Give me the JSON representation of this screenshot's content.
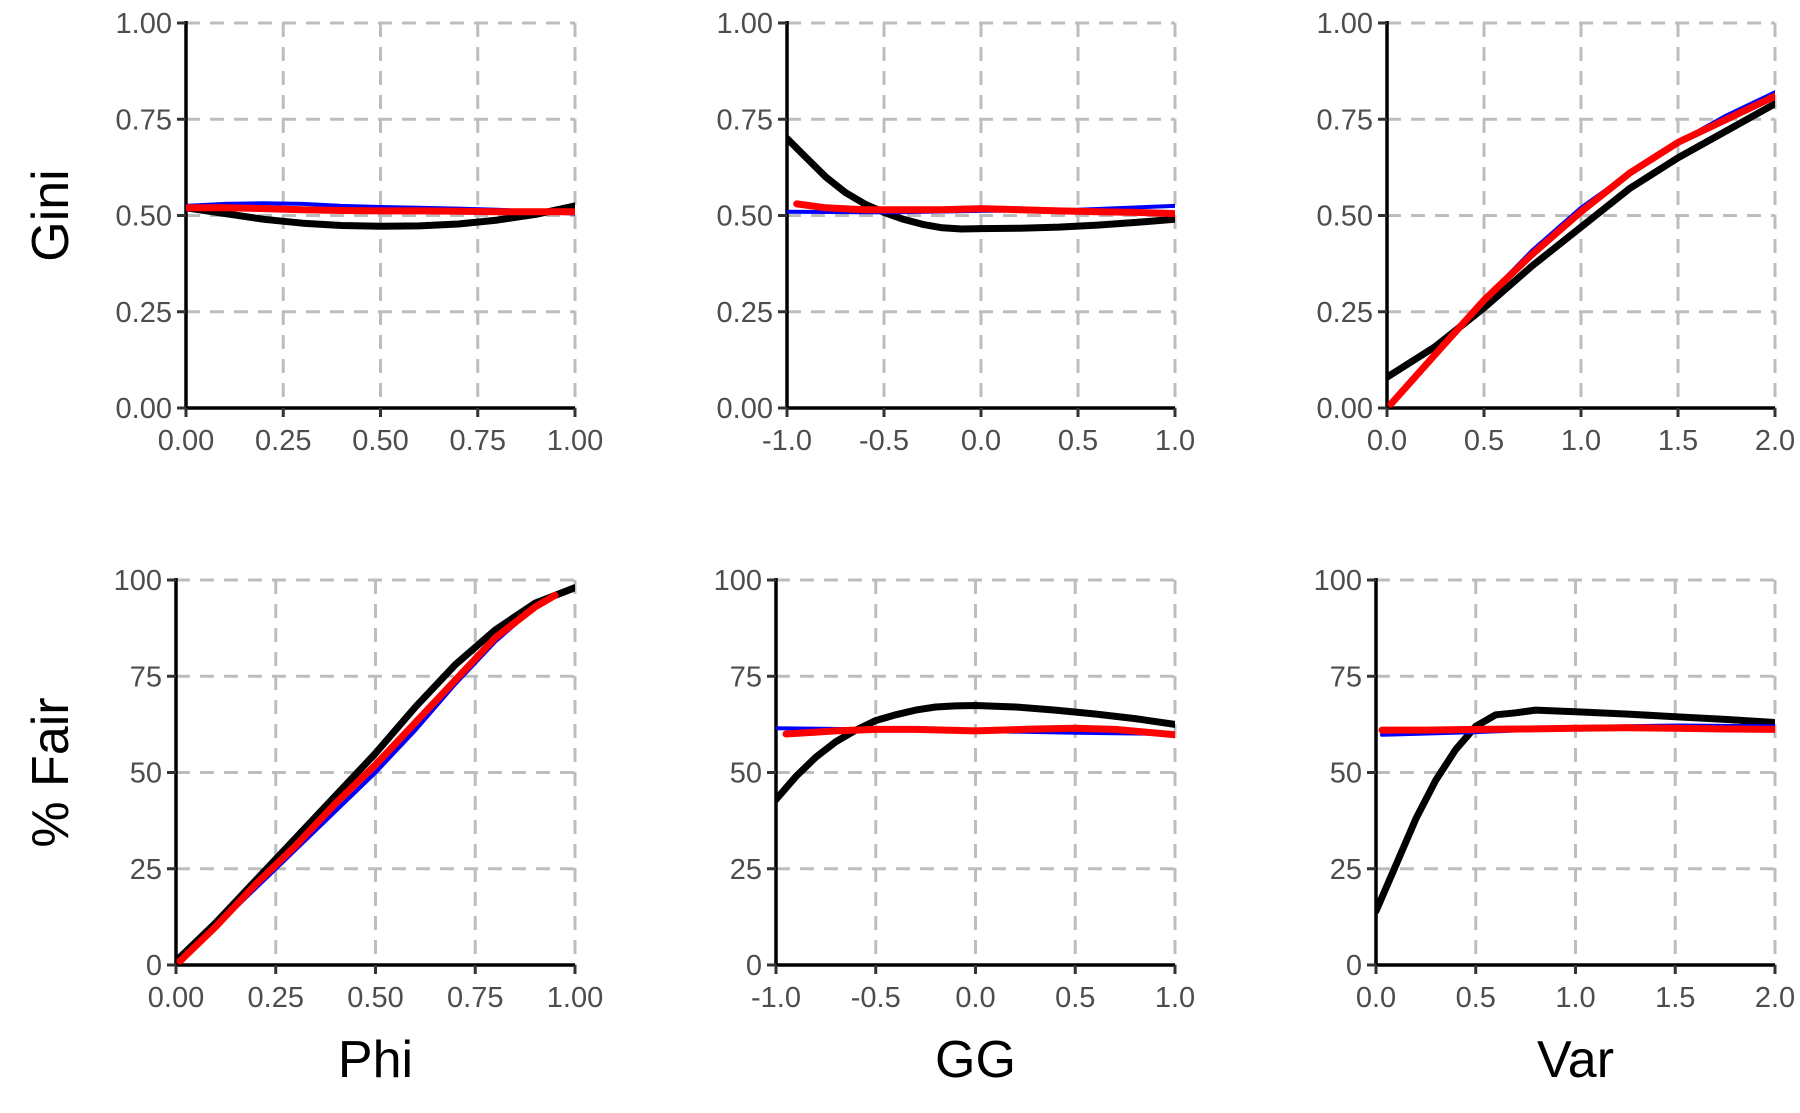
{
  "chart_data": [
    {
      "type": "line",
      "xlabel": "",
      "ylabel": "Gini",
      "xlim": [
        0,
        1
      ],
      "ylim": [
        0,
        1
      ],
      "xticks": [
        "0.00",
        "0.25",
        "0.50",
        "0.75",
        "1.00"
      ],
      "yticks": [
        "0.00",
        "0.25",
        "0.50",
        "0.75",
        "1.00"
      ],
      "xtick_values": [
        0,
        0.25,
        0.5,
        0.75,
        1
      ],
      "ytick_values": [
        0,
        0.25,
        0.5,
        0.75,
        1
      ],
      "grid": true,
      "series": [
        {
          "color": "#000000",
          "width": 7,
          "x": [
            0,
            0.1,
            0.2,
            0.3,
            0.4,
            0.5,
            0.6,
            0.7,
            0.8,
            0.9,
            1.0
          ],
          "y": [
            0.52,
            0.505,
            0.49,
            0.48,
            0.474,
            0.472,
            0.473,
            0.478,
            0.488,
            0.503,
            0.525
          ]
        },
        {
          "color": "#0000ff",
          "width": 4,
          "x": [
            0,
            0.1,
            0.2,
            0.3,
            0.4,
            0.5,
            0.6,
            0.7,
            0.8,
            0.9,
            1.0
          ],
          "y": [
            0.525,
            0.53,
            0.532,
            0.53,
            0.525,
            0.522,
            0.52,
            0.518,
            0.515,
            0.51,
            0.505
          ]
        },
        {
          "color": "#ff0000",
          "width": 7,
          "x": [
            0,
            0.1,
            0.2,
            0.3,
            0.4,
            0.5,
            0.6,
            0.7,
            0.8,
            0.9,
            1.0
          ],
          "y": [
            0.52,
            0.52,
            0.518,
            0.515,
            0.513,
            0.512,
            0.512,
            0.511,
            0.51,
            0.51,
            0.51
          ]
        }
      ]
    },
    {
      "type": "line",
      "xlabel": "",
      "ylabel": "",
      "xlim": [
        -1,
        1
      ],
      "ylim": [
        0,
        1
      ],
      "xticks": [
        "-1.0",
        "-0.5",
        "0.0",
        "0.5",
        "1.0"
      ],
      "yticks": [
        "0.00",
        "0.25",
        "0.50",
        "0.75",
        "1.00"
      ],
      "xtick_values": [
        -1,
        -0.5,
        0,
        0.5,
        1
      ],
      "ytick_values": [
        0,
        0.25,
        0.5,
        0.75,
        1
      ],
      "grid": true,
      "series": [
        {
          "color": "#000000",
          "width": 7,
          "x": [
            -1,
            -0.9,
            -0.8,
            -0.7,
            -0.6,
            -0.5,
            -0.4,
            -0.3,
            -0.2,
            -0.1,
            0,
            0.2,
            0.4,
            0.6,
            0.8,
            1.0
          ],
          "y": [
            0.7,
            0.65,
            0.6,
            0.56,
            0.53,
            0.508,
            0.49,
            0.477,
            0.468,
            0.465,
            0.466,
            0.467,
            0.47,
            0.475,
            0.482,
            0.49
          ]
        },
        {
          "color": "#0000ff",
          "width": 4,
          "x": [
            -1,
            -0.5,
            0,
            0.5,
            1.0
          ],
          "y": [
            0.51,
            0.508,
            0.512,
            0.515,
            0.525
          ]
        },
        {
          "color": "#ff0000",
          "width": 7,
          "x": [
            -0.95,
            -0.8,
            -0.6,
            -0.4,
            -0.2,
            0,
            0.2,
            0.4,
            0.6,
            0.8,
            1.0
          ],
          "y": [
            0.53,
            0.52,
            0.515,
            0.515,
            0.515,
            0.518,
            0.515,
            0.512,
            0.51,
            0.508,
            0.505
          ]
        }
      ]
    },
    {
      "type": "line",
      "xlabel": "",
      "ylabel": "",
      "xlim": [
        0,
        2
      ],
      "ylim": [
        0,
        1
      ],
      "xticks": [
        "0.0",
        "0.5",
        "1.0",
        "1.5",
        "2.0"
      ],
      "yticks": [
        "0.00",
        "0.25",
        "0.50",
        "0.75",
        "1.00"
      ],
      "xtick_values": [
        0,
        0.5,
        1,
        1.5,
        2
      ],
      "ytick_values": [
        0,
        0.25,
        0.5,
        0.75,
        1
      ],
      "grid": true,
      "series": [
        {
          "color": "#000000",
          "width": 7,
          "x": [
            0,
            0.25,
            0.5,
            0.75,
            1.0,
            1.25,
            1.5,
            1.75,
            2.0
          ],
          "y": [
            0.08,
            0.16,
            0.26,
            0.37,
            0.47,
            0.57,
            0.65,
            0.72,
            0.79
          ]
        },
        {
          "color": "#0000ff",
          "width": 4,
          "x": [
            0.02,
            0.25,
            0.5,
            0.75,
            1.0,
            1.25,
            1.5,
            1.75,
            2.0
          ],
          "y": [
            0.01,
            0.14,
            0.28,
            0.41,
            0.52,
            0.61,
            0.69,
            0.76,
            0.82
          ]
        },
        {
          "color": "#ff0000",
          "width": 7,
          "x": [
            0.02,
            0.25,
            0.5,
            0.75,
            1.0,
            1.25,
            1.5,
            1.75,
            2.0
          ],
          "y": [
            0.01,
            0.14,
            0.28,
            0.4,
            0.51,
            0.61,
            0.69,
            0.75,
            0.81
          ]
        }
      ]
    },
    {
      "type": "line",
      "xlabel": "Phi",
      "ylabel": "% Fair",
      "xlim": [
        0,
        1
      ],
      "ylim": [
        0,
        100
      ],
      "xticks": [
        "0.00",
        "0.25",
        "0.50",
        "0.75",
        "1.00"
      ],
      "yticks": [
        "0",
        "25",
        "50",
        "75",
        "100"
      ],
      "xtick_values": [
        0,
        0.25,
        0.5,
        0.75,
        1
      ],
      "ytick_values": [
        0,
        25,
        50,
        75,
        100
      ],
      "grid": true,
      "series": [
        {
          "color": "#000000",
          "width": 7,
          "x": [
            0,
            0.1,
            0.2,
            0.3,
            0.4,
            0.5,
            0.6,
            0.7,
            0.8,
            0.9,
            1.0
          ],
          "y": [
            1,
            11,
            22,
            33,
            44,
            55,
            67,
            78,
            87,
            94,
            98
          ]
        },
        {
          "color": "#0000ff",
          "width": 4,
          "x": [
            0.01,
            0.1,
            0.2,
            0.3,
            0.4,
            0.5,
            0.6,
            0.7,
            0.8,
            0.9,
            0.95
          ],
          "y": [
            1,
            10,
            20,
            30,
            40,
            50,
            61,
            73,
            84,
            93,
            96
          ]
        },
        {
          "color": "#ff0000",
          "width": 7,
          "x": [
            0.01,
            0.1,
            0.2,
            0.3,
            0.4,
            0.5,
            0.6,
            0.7,
            0.8,
            0.9,
            0.95
          ],
          "y": [
            1,
            10,
            21,
            31,
            42,
            52,
            63,
            74,
            85,
            93,
            96
          ]
        }
      ]
    },
    {
      "type": "line",
      "xlabel": "GG",
      "ylabel": "",
      "xlim": [
        -1,
        1
      ],
      "ylim": [
        0,
        100
      ],
      "xticks": [
        "-1.0",
        "-0.5",
        "0.0",
        "0.5",
        "1.0"
      ],
      "yticks": [
        "0",
        "25",
        "50",
        "75",
        "100"
      ],
      "xtick_values": [
        -1,
        -0.5,
        0,
        0.5,
        1
      ],
      "ytick_values": [
        0,
        25,
        50,
        75,
        100
      ],
      "grid": true,
      "series": [
        {
          "color": "#000000",
          "width": 7,
          "x": [
            -1,
            -0.9,
            -0.8,
            -0.7,
            -0.6,
            -0.5,
            -0.4,
            -0.3,
            -0.2,
            -0.1,
            0,
            0.2,
            0.4,
            0.6,
            0.8,
            1.0
          ],
          "y": [
            43,
            49,
            54,
            58,
            61,
            63.5,
            65,
            66.2,
            67,
            67.3,
            67.4,
            67,
            66.2,
            65.2,
            64,
            62.5
          ]
        },
        {
          "color": "#0000ff",
          "width": 4,
          "x": [
            -1,
            -0.5,
            0,
            0.5,
            1.0
          ],
          "y": [
            61.5,
            61.2,
            60.8,
            60.3,
            60
          ]
        },
        {
          "color": "#ff0000",
          "width": 7,
          "x": [
            -0.95,
            -0.7,
            -0.5,
            -0.3,
            0,
            0.3,
            0.5,
            0.7,
            1.0
          ],
          "y": [
            60,
            60.8,
            61.2,
            61.2,
            60.8,
            61.3,
            61.5,
            61.2,
            59.8
          ]
        }
      ]
    },
    {
      "type": "line",
      "xlabel": "Var",
      "ylabel": "",
      "xlim": [
        0,
        2
      ],
      "ylim": [
        0,
        100
      ],
      "xticks": [
        "0.0",
        "0.5",
        "1.0",
        "1.5",
        "2.0"
      ],
      "yticks": [
        "0",
        "25",
        "50",
        "75",
        "100"
      ],
      "xtick_values": [
        0,
        0.5,
        1,
        1.5,
        2
      ],
      "ytick_values": [
        0,
        25,
        50,
        75,
        100
      ],
      "grid": true,
      "series": [
        {
          "color": "#000000",
          "width": 7,
          "x": [
            0,
            0.1,
            0.2,
            0.3,
            0.4,
            0.5,
            0.6,
            0.7,
            0.8,
            1.0,
            1.25,
            1.5,
            1.75,
            2.0
          ],
          "y": [
            14,
            26,
            38,
            48,
            56,
            62,
            65,
            65.5,
            66.2,
            65.8,
            65.2,
            64.5,
            63.8,
            63
          ]
        },
        {
          "color": "#0000ff",
          "width": 4,
          "x": [
            0.03,
            0.5,
            0.75,
            1.0,
            1.5,
            2.0
          ],
          "y": [
            59.8,
            60.5,
            61,
            61.8,
            62.2,
            62
          ]
        },
        {
          "color": "#ff0000",
          "width": 7,
          "x": [
            0.03,
            0.25,
            0.5,
            0.75,
            1.0,
            1.25,
            1.5,
            1.75,
            2.0
          ],
          "y": [
            61,
            61,
            61.2,
            61.3,
            61.5,
            61.6,
            61.5,
            61.3,
            61.2
          ]
        }
      ]
    }
  ]
}
